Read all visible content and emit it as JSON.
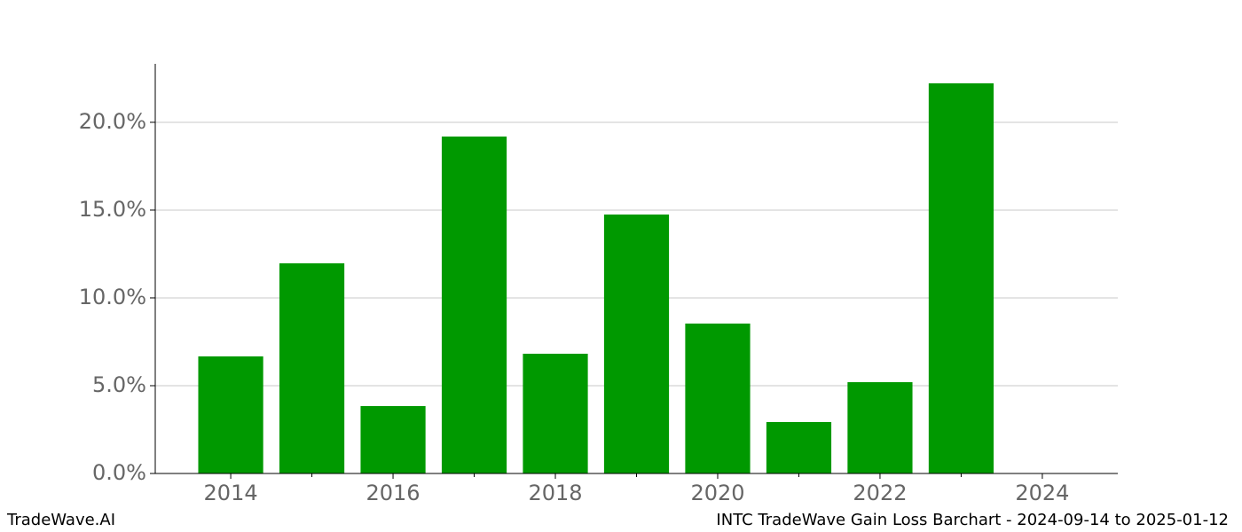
{
  "chart_data": {
    "type": "bar",
    "x": [
      2014,
      2015,
      2016,
      2017,
      2018,
      2019,
      2020,
      2021,
      2022,
      2023
    ],
    "values": [
      6.67,
      11.97,
      3.84,
      19.19,
      6.82,
      14.75,
      8.54,
      2.93,
      5.2,
      22.22
    ],
    "color": "#009900",
    "xlim": [
      2013.07,
      2024.93
    ],
    "xticks": [
      2014,
      2016,
      2018,
      2020,
      2022,
      2024
    ],
    "x_minor_ticks": [
      2015,
      2017,
      2019,
      2021,
      2023
    ],
    "ylim": [
      0,
      23.33
    ],
    "yticks": [
      {
        "value": 0,
        "label": "0.0%"
      },
      {
        "value": 5,
        "label": "5.0%"
      },
      {
        "value": 10,
        "label": "10.0%"
      },
      {
        "value": 15,
        "label": "15.0%"
      },
      {
        "value": 20,
        "label": "20.0%"
      }
    ],
    "grid": true,
    "footer_left": "TradeWave.AI",
    "footer_right": "INTC TradeWave Gain Loss Barchart - 2024-09-14 to 2025-01-12"
  }
}
